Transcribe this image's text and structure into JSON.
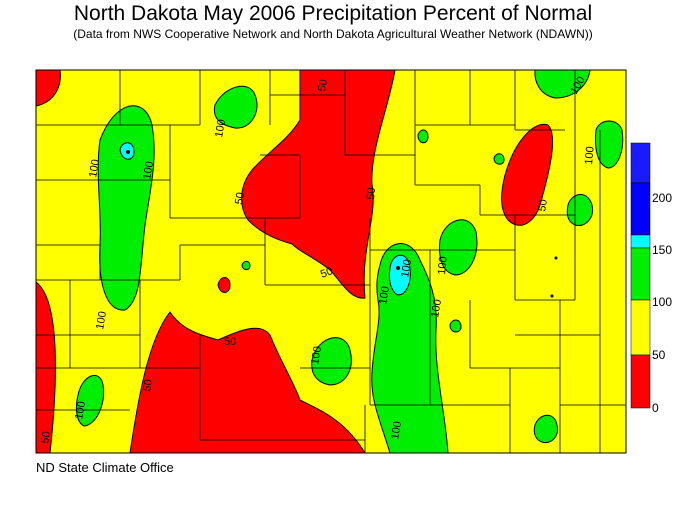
{
  "title": "North Dakota May 2006 Precipitation Percent of Normal",
  "subtitle": "(Data from NWS Cooperative Network and North Dakota Agricultural Weather Network (NDAWN))",
  "footer": "ND State Climate Office",
  "legend": {
    "labels": [
      "200",
      "150",
      "100",
      "50",
      "0"
    ],
    "bands": [
      {
        "range": "200+",
        "color": "#1a1aff"
      },
      {
        "range": "150-200",
        "color": "#0000ff"
      },
      {
        "range": "100-150",
        "color": "#00ffff"
      },
      {
        "range": "50-100",
        "color": "#00ee00"
      },
      {
        "range": "0-50",
        "color": "#ffff00"
      }
    ]
  },
  "colors": {
    "red": "#ff0000",
    "yellow": "#ffff00",
    "green": "#00ee00",
    "cyan": "#00ffff",
    "blue": "#0000ff"
  },
  "contour_labels": [
    "100",
    "100",
    "100",
    "100",
    "100",
    "100",
    "100",
    "100",
    "100",
    "100",
    "100",
    "100",
    "100",
    "50",
    "50",
    "50",
    "50",
    "50",
    "50",
    "50",
    "50"
  ]
}
